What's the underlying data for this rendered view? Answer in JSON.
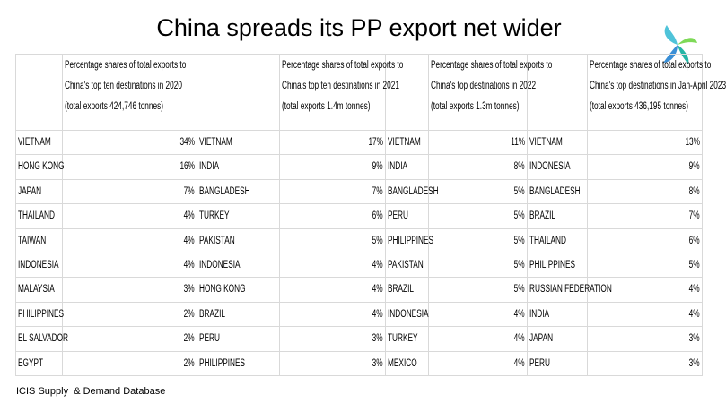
{
  "title": "China spreads its PP export net wider",
  "table": {
    "headers": [
      [
        "Percentage shares of total exports to",
        "China's top ten destinations in 2020",
        "(total exports 424,746 tonnes)"
      ],
      [
        "Percentage shares of total exports to",
        "China's top ten destinations in 2021",
        "(total exports 1.4m tonnes)"
      ],
      [
        "Percentage shares of total exports to",
        "China's top destinations in 2022",
        "(total exports 1.3m tonnes)"
      ],
      [
        "Percentage shares of total exports to",
        "China's top destinations in Jan-April 2023",
        "(total exports 436,195 tonnes)"
      ]
    ],
    "rows": [
      [
        "VIETNAM",
        "34%",
        "VIETNAM",
        "17%",
        "VIETNAM",
        "11%",
        "VIETNAM",
        "13%"
      ],
      [
        "HONG KONG",
        "16%",
        "INDIA",
        "9%",
        "INDIA",
        "8%",
        "INDONESIA",
        "9%"
      ],
      [
        "JAPAN",
        "7%",
        "BANGLADESH",
        "7%",
        "BANGLADESH",
        "5%",
        "BANGLADESH",
        "8%"
      ],
      [
        "THAILAND",
        "4%",
        "TURKEY",
        "6%",
        "PERU",
        "5%",
        "BRAZIL",
        "7%"
      ],
      [
        "TAIWAN",
        "4%",
        "PAKISTAN",
        "5%",
        "PHILIPPINES",
        "5%",
        "THAILAND",
        "6%"
      ],
      [
        "INDONESIA",
        "4%",
        "INDONESIA",
        "4%",
        "PAKISTAN",
        "5%",
        "PHILIPPINES",
        "5%"
      ],
      [
        "MALAYSIA",
        "3%",
        "HONG KONG",
        "4%",
        "BRAZIL",
        "5%",
        "RUSSIAN FEDERATION",
        "4%"
      ],
      [
        "PHILIPPINES",
        "2%",
        "BRAZIL",
        "4%",
        "INDONESIA",
        "4%",
        "INDIA",
        "4%"
      ],
      [
        "EL SALVADOR",
        "2%",
        "PERU",
        "3%",
        "TURKEY",
        "4%",
        "JAPAN",
        "3%"
      ],
      [
        "EGYPT",
        "2%",
        "PHILIPPINES",
        "3%",
        "MEXICO",
        "4%",
        "PERU",
        "3%"
      ]
    ]
  },
  "source": "ICIS Supply  & Demand Database"
}
